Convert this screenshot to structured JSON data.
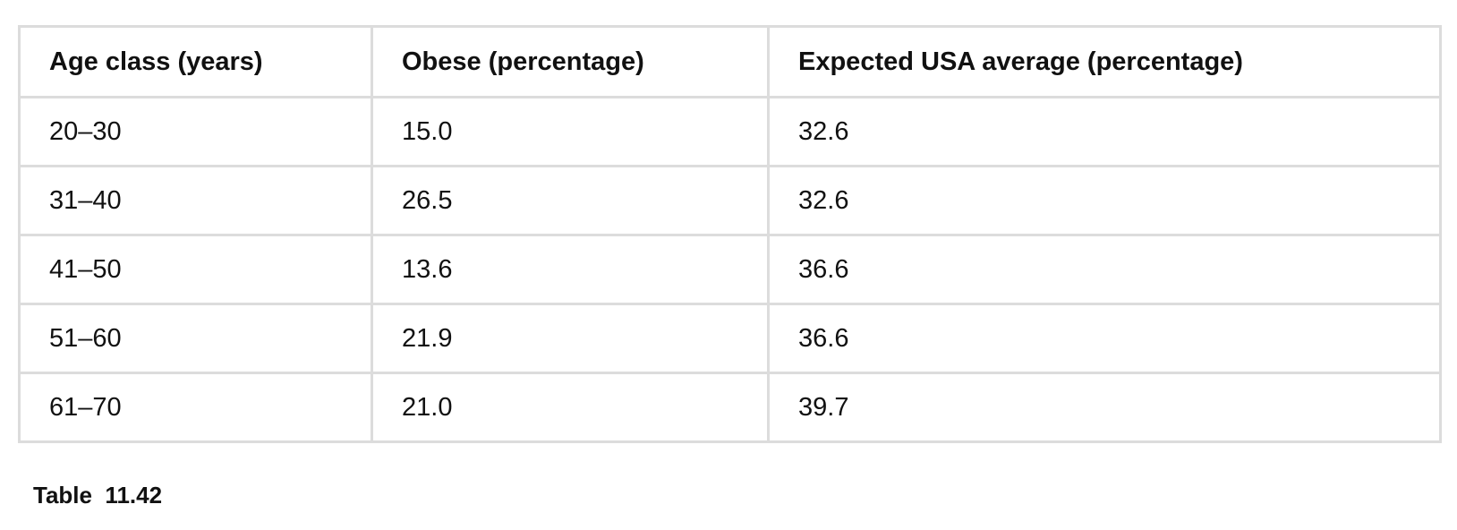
{
  "table": {
    "headers": [
      "Age class (years)",
      "Obese (percentage)",
      "Expected USA average (percentage)"
    ],
    "rows": [
      [
        "20–30",
        "15.0",
        "32.6"
      ],
      [
        "31–40",
        "26.5",
        "32.6"
      ],
      [
        "41–50",
        "13.6",
        "36.6"
      ],
      [
        "51–60",
        "21.9",
        "36.6"
      ],
      [
        "61–70",
        "21.0",
        "39.7"
      ]
    ]
  },
  "caption": "Table  11.42"
}
